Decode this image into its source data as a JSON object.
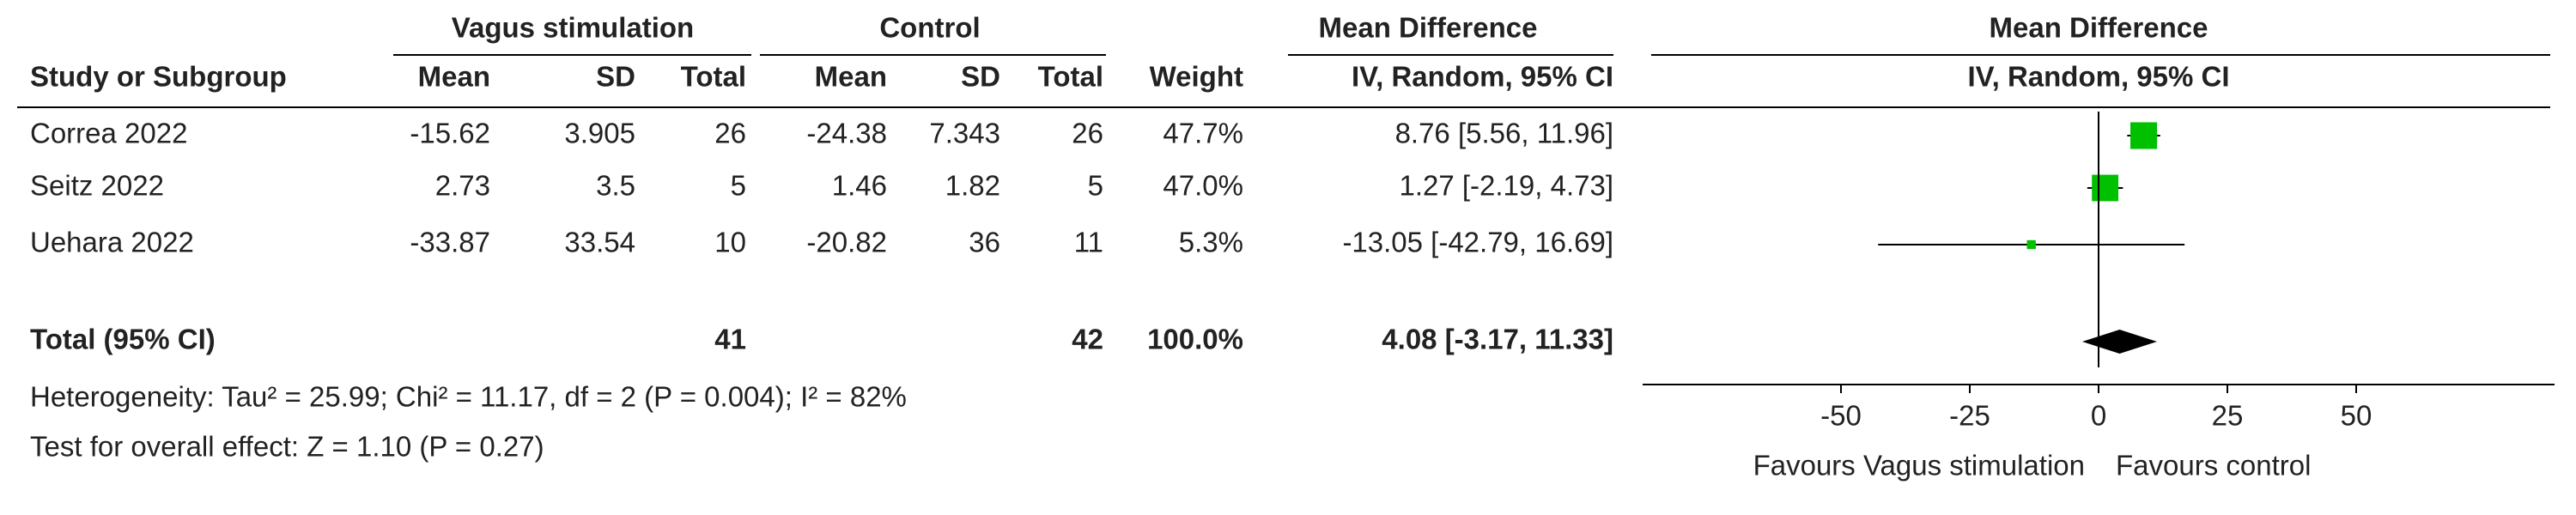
{
  "chart_data": {
    "type": "forest",
    "group_headers": {
      "experimental": "Vagus stimulation",
      "control": "Control",
      "effect": "Mean Difference",
      "plot": "Mean Difference"
    },
    "columns": [
      "Study or Subgroup",
      "Mean",
      "SD",
      "Total",
      "Mean",
      "SD",
      "Total",
      "Weight",
      "IV, Random, 95% CI"
    ],
    "plot_header": "IV, Random, 95% CI",
    "studies": [
      {
        "name": "Correa 2022",
        "exp_mean": -15.62,
        "exp_sd": 3.905,
        "exp_total": 26,
        "ctrl_mean": -24.38,
        "ctrl_sd": 7.343,
        "ctrl_total": 26,
        "weight": 47.7,
        "weight_label": "47.7%",
        "md": 8.76,
        "ci": [
          5.56,
          11.96
        ],
        "ci_label": "8.76 [5.56, 11.96]",
        "color": "#00c000"
      },
      {
        "name": "Seitz 2022",
        "exp_mean": 2.73,
        "exp_sd": 3.5,
        "exp_total": 5,
        "ctrl_mean": 1.46,
        "ctrl_sd": 1.82,
        "ctrl_total": 5,
        "weight": 47.0,
        "weight_label": "47.0%",
        "md": 1.27,
        "ci": [
          -2.19,
          4.73
        ],
        "ci_label": "1.27 [-2.19, 4.73]",
        "color": "#00c000"
      },
      {
        "name": "Uehara 2022",
        "exp_mean": -33.87,
        "exp_sd": 33.54,
        "exp_total": 10,
        "ctrl_mean": -20.82,
        "ctrl_sd": 36,
        "ctrl_total": 11,
        "weight": 5.3,
        "weight_label": "5.3%",
        "md": -13.05,
        "ci": [
          -42.79,
          16.69
        ],
        "ci_label": "-13.05 [-42.79, 16.69]",
        "color": "#00c000"
      }
    ],
    "total": {
      "name": "Total (95% CI)",
      "exp_total": 41,
      "ctrl_total": 42,
      "weight": 100.0,
      "weight_label": "100.0%",
      "md": 4.08,
      "ci": [
        -3.17,
        11.33
      ],
      "ci_label": "4.08 [-3.17, 11.33]",
      "color": "#000000"
    },
    "heterogeneity": "Heterogeneity: Tau² = 25.99; Chi² = 11.17, df = 2 (P = 0.004); I² = 82%",
    "overall_effect": "Test for overall effect: Z = 1.10 (P = 0.27)",
    "xlim": [
      -88.5,
      88.5
    ],
    "xticks": [
      -50,
      -25,
      0,
      25,
      50
    ],
    "favours_left": "Favours Vagus stimulation",
    "favours_right": "Favours control"
  }
}
